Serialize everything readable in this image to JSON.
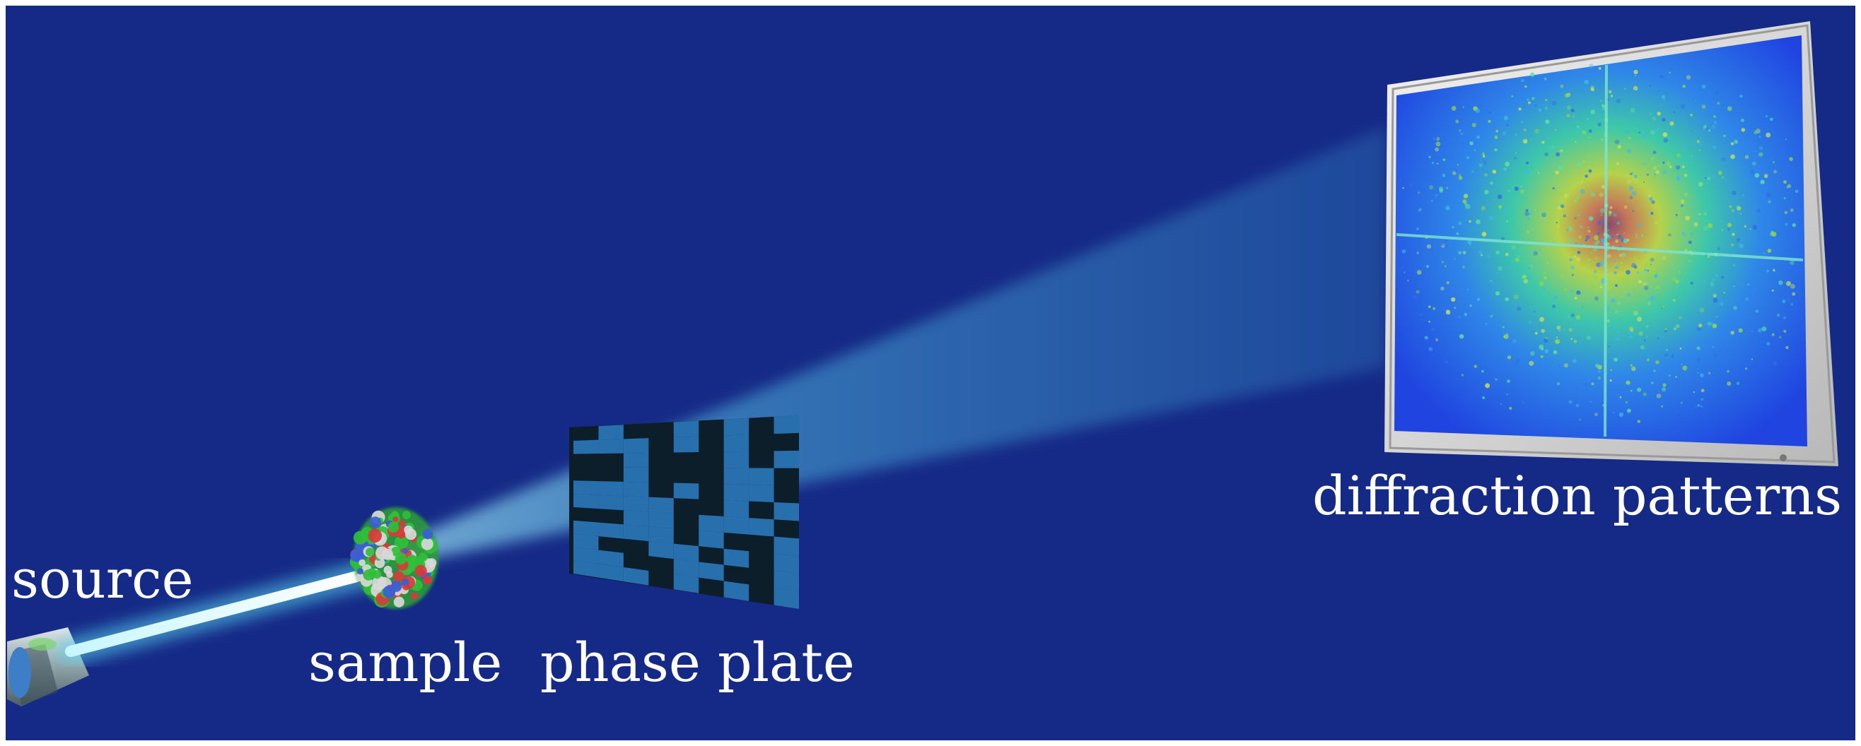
{
  "labels": {
    "source": "source",
    "sample": "sample",
    "phase_plate": "phase plate",
    "diffraction_patterns": "diffraction patterns"
  },
  "colors": {
    "background": "#152a86",
    "beam_core": "#e8fbff",
    "beam_glow": "#5ad6f0",
    "phase_plate": "#0b1e2a",
    "monitor_frame": "#d8d8d8",
    "pattern_base": "#1f56e8",
    "pattern_center": "#8a4a6c",
    "label_text": "#ffffff"
  },
  "icons": {
    "source": "x-ray-source-nozzle-icon",
    "sample": "protein-molecule-icon",
    "phase_plate": "random-phase-mask-icon",
    "detector": "monitor-detector-icon"
  }
}
